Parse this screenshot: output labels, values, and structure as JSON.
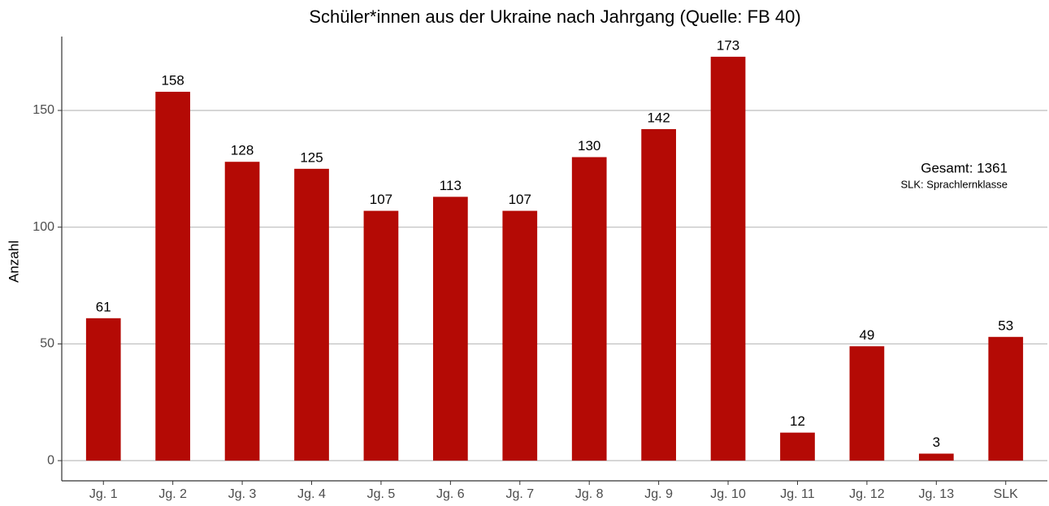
{
  "chart_data": {
    "type": "bar",
    "title": "Schüler*innen aus der Ukraine nach Jahrgang (Quelle: FB 40)",
    "y_label": "Anzahl",
    "categories": [
      "Jg. 1",
      "Jg. 2",
      "Jg. 3",
      "Jg. 4",
      "Jg. 5",
      "Jg. 6",
      "Jg. 7",
      "Jg. 8",
      "Jg. 9",
      "Jg. 10",
      "Jg. 11",
      "Jg. 12",
      "Jg. 13",
      "SLK"
    ],
    "values": [
      61,
      158,
      128,
      125,
      107,
      113,
      107,
      130,
      142,
      173,
      12,
      49,
      3,
      53
    ],
    "color": "#b40a05",
    "ylim": [
      -8.65,
      181.65
    ],
    "yticks": [
      0,
      50,
      100,
      150
    ],
    "grid": true,
    "annotations": [
      "Gesamt: 1361",
      "SLK: Sprachlernklasse"
    ]
  }
}
